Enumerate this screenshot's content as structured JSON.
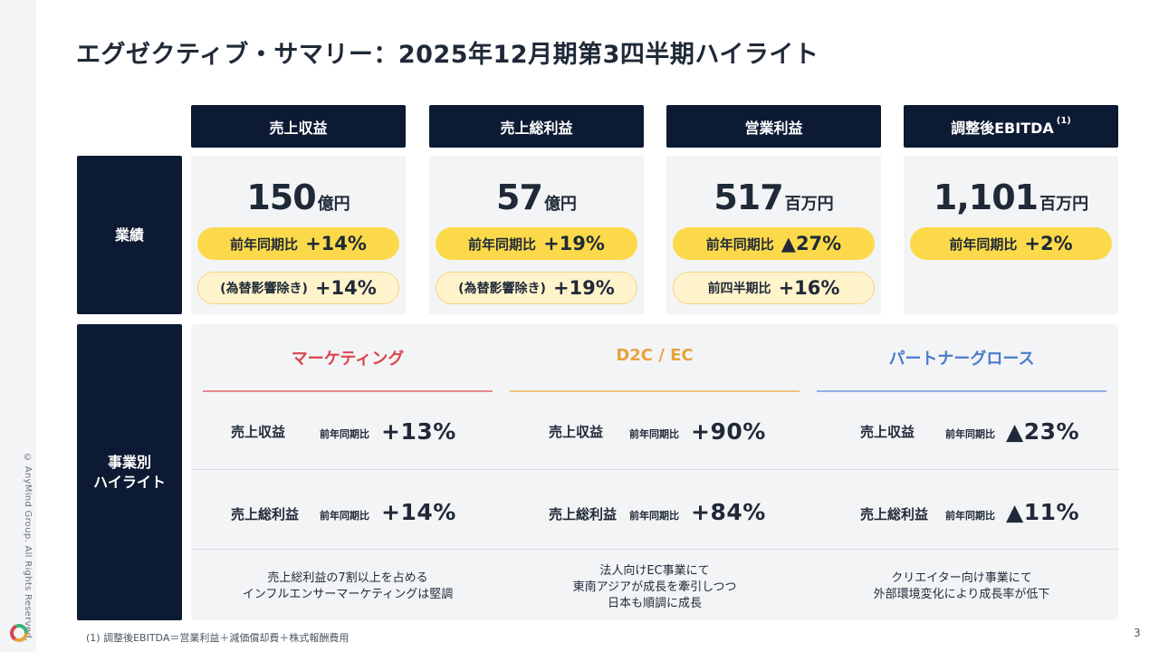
{
  "title": "エグゼクティブ・サマリー：2025年12月期第3四半期ハイライト",
  "columns": [
    {
      "label": "売上収益",
      "sup": ""
    },
    {
      "label": "売上総利益",
      "sup": ""
    },
    {
      "label": "営業利益",
      "sup": ""
    },
    {
      "label": "調整後EBITDA",
      "sup": "(1)"
    }
  ],
  "rows": {
    "results": "業績",
    "segment_line1": "事業別",
    "segment_line2": "ハイライト"
  },
  "kpis": [
    {
      "value": "150",
      "unit": "億円",
      "pill1_label": "前年同期比",
      "pill1_value": "+14%",
      "pill2_label": "(為替影響除き)",
      "pill2_value": "+14%"
    },
    {
      "value": "57",
      "unit": "億円",
      "pill1_label": "前年同期比",
      "pill1_value": "+19%",
      "pill2_label": "(為替影響除き)",
      "pill2_value": "+19%"
    },
    {
      "value": "517",
      "unit": "百万円",
      "pill1_label": "前年同期比",
      "pill1_value": "▲27%",
      "pill2_label": "前四半期比",
      "pill2_value": "+16%"
    },
    {
      "value": "1,101",
      "unit": "百万円",
      "pill1_label": "前年同期比",
      "pill1_value": "+2%"
    }
  ],
  "segments": [
    {
      "name": "マーケティング",
      "color": "#d9464f",
      "revenue_label": "売上収益",
      "revenue_yoy_label": "前年同期比",
      "revenue_yoy": "+13%",
      "gp_label": "売上総利益",
      "gp_yoy_label": "前年同期比",
      "gp_yoy": "+14%",
      "desc_line1": "売上総利益の7割以上を占める",
      "desc_line2": "インフルエンサーマーケティングは堅調",
      "desc_line3": ""
    },
    {
      "name": "D2C / EC",
      "color": "#e8a33d",
      "revenue_label": "売上収益",
      "revenue_yoy_label": "前年同期比",
      "revenue_yoy": "+90%",
      "gp_label": "売上総利益",
      "gp_yoy_label": "前年同期比",
      "gp_yoy": "+84%",
      "desc_line1": "法人向けEC事業にて",
      "desc_line2": "東南アジアが成長を牽引しつつ",
      "desc_line3": "日本も順調に成長"
    },
    {
      "name": "パートナーグロース",
      "color": "#4a7cc9",
      "revenue_label": "売上収益",
      "revenue_yoy_label": "前年同期比",
      "revenue_yoy": "▲23%",
      "gp_label": "売上総利益",
      "gp_yoy_label": "前年同期比",
      "gp_yoy": "▲11%",
      "desc_line1": "クリエイター向け事業にて",
      "desc_line2": "外部環境変化により成長率が低下",
      "desc_line3": ""
    }
  ],
  "footnote": "(1) 調整後EBITDA＝営業利益＋減価償却費＋株式報酬費用",
  "copyright": "© AnyMind Group. All Rights Reserved.",
  "page_number": "3",
  "colors": {
    "navy": "#0d1a33",
    "yellow": "#fcd94a",
    "light_yellow": "#fff3cc",
    "panel": "#f3f4f6"
  }
}
